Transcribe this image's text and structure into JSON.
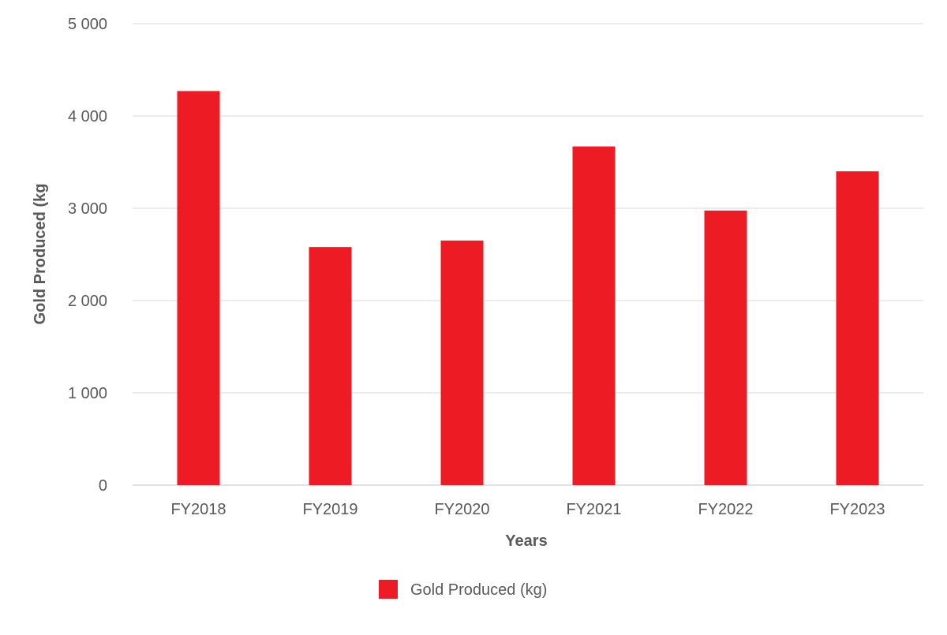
{
  "chart_data": {
    "type": "bar",
    "title": "",
    "xlabel": "Years",
    "ylabel": "Gold Produced (kg",
    "categories": [
      "FY2018",
      "FY2019",
      "FY2020",
      "FY2021",
      "FY2022",
      "FY2023"
    ],
    "series": [
      {
        "name": "Gold Produced (kg)",
        "color": "#ed1c24",
        "values": [
          4270,
          2580,
          2650,
          3670,
          2975,
          3400
        ]
      }
    ],
    "ylim": [
      0,
      5000
    ],
    "yticks": [
      0,
      1000,
      2000,
      3000,
      4000,
      5000
    ],
    "ytick_labels": [
      "0",
      "1 000",
      "2 000",
      "3 000",
      "4 000",
      "5 000"
    ],
    "grid": true,
    "legend": "bottom-center"
  }
}
